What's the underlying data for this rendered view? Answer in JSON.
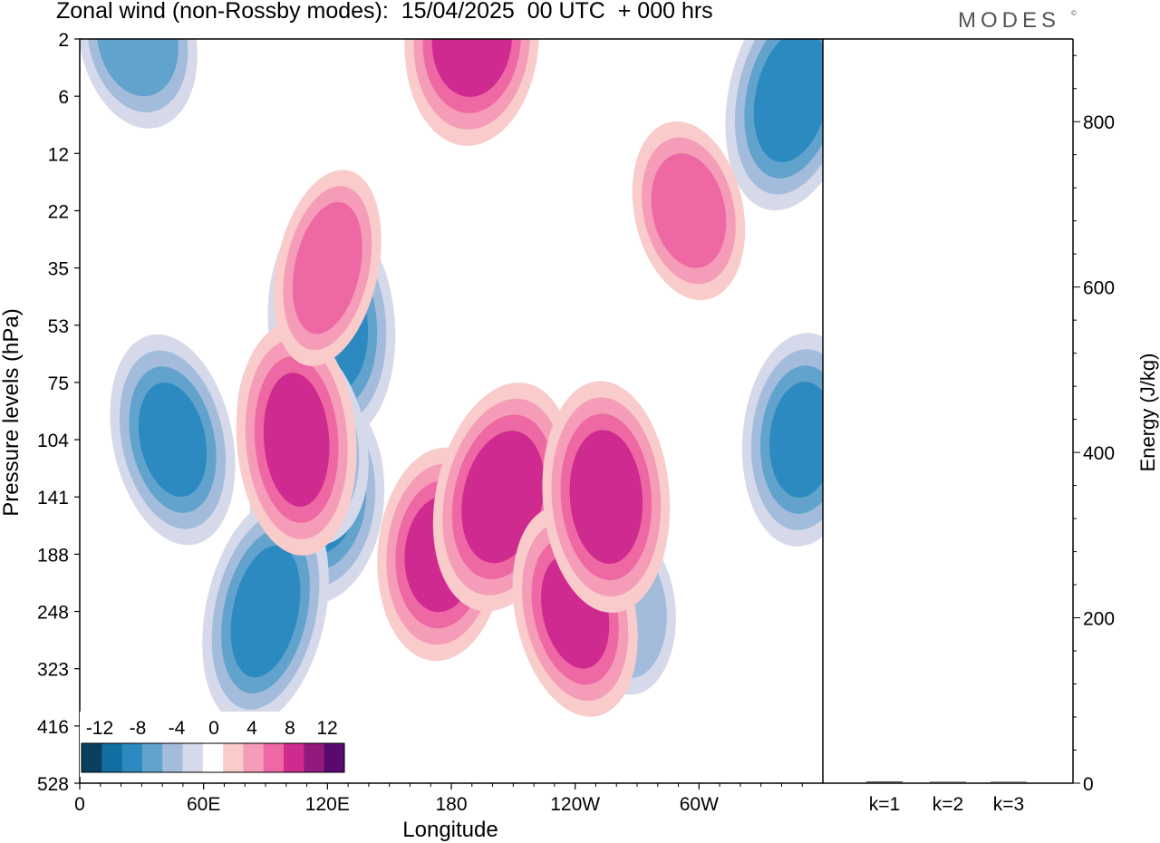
{
  "header": {
    "title": "Zonal wind (non-Rossby modes):  15/04/2025  00 UTC  + 000 hrs",
    "brand": "MODES",
    "brand_mark": "©"
  },
  "colors": {
    "negative": [
      "#0b3f5f",
      "#116ea0",
      "#2d8ac0",
      "#61a3cd",
      "#a4bcdb",
      "#d6d9ea"
    ],
    "zero": "#ffffff",
    "positive": [
      "#f9cbcb",
      "#f59cb8",
      "#ee68a4",
      "#cf2a8f",
      "#93197d",
      "#5a0a6e"
    ]
  },
  "chart_data": [
    {
      "type": "heatmap",
      "title": "Zonal wind (non-Rossby modes):  15/04/2025  00 UTC  + 000 hrs",
      "xlabel": "Longitude",
      "ylabel": "Pressure levels (hPa)",
      "x_ticks": [
        "0",
        "60E",
        "120E",
        "180",
        "120W",
        "60W"
      ],
      "y_ticks": [
        "2",
        "6",
        "12",
        "22",
        "35",
        "53",
        "75",
        "104",
        "141",
        "188",
        "248",
        "323",
        "416",
        "528"
      ],
      "colorbar": {
        "tick_labels": [
          "-12",
          "-8",
          "-4",
          "0",
          "4",
          "8",
          "12"
        ],
        "levels": [
          -14,
          -12,
          -10,
          -8,
          -6,
          -4,
          -2,
          2,
          4,
          6,
          8,
          10,
          12,
          14
        ]
      },
      "features": [
        {
          "lon": 45,
          "level": "104",
          "value": -9
        },
        {
          "lon": 122,
          "level": "53",
          "value": -10
        },
        {
          "lon": 115,
          "level": "141",
          "value": -9
        },
        {
          "lon": 90,
          "level": "248",
          "value": -8
        },
        {
          "lon": 108,
          "level": "104",
          "value": -8
        },
        {
          "lon": 265,
          "level": "248",
          "value": -5
        },
        {
          "lon": 350,
          "level": "104",
          "value": -9
        },
        {
          "lon": 345,
          "level": "6",
          "value": -8
        },
        {
          "lon": 28,
          "level": "2",
          "value": -7
        },
        {
          "lon": 105,
          "level": "104",
          "value": 9
        },
        {
          "lon": 175,
          "level": "188",
          "value": 8
        },
        {
          "lon": 205,
          "level": "141",
          "value": 8
        },
        {
          "lon": 240,
          "level": "248",
          "value": 9
        },
        {
          "lon": 255,
          "level": "141",
          "value": 8
        },
        {
          "lon": 190,
          "level": "2",
          "value": 8
        },
        {
          "lon": 120,
          "level": "35",
          "value": 6
        },
        {
          "lon": 295,
          "level": "22",
          "value": 6
        }
      ]
    },
    {
      "type": "bar",
      "ylabel": "Energy (J/kg)",
      "categories": [
        "k=1",
        "k=2",
        "k=3"
      ],
      "values": [
        2,
        1,
        1
      ],
      "y_ticks": [
        "0",
        "200",
        "400",
        "600",
        "800"
      ],
      "ylim": [
        0,
        900
      ]
    }
  ]
}
